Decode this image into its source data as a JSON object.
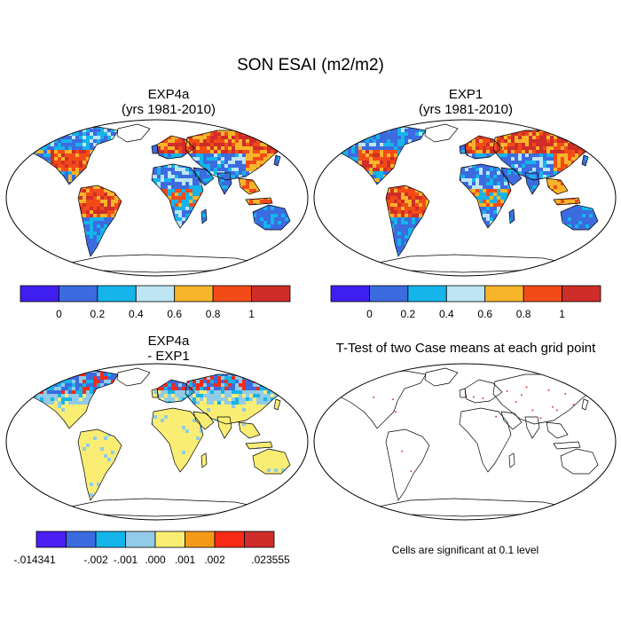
{
  "title": "SON ESAI (m2/m2)",
  "panels": [
    {
      "id": "exp4a",
      "title_line1": "EXP4a",
      "title_line2": "(yrs 1981-2010)"
    },
    {
      "id": "exp1",
      "title_line1": "EXP1",
      "title_line2": "(yrs 1981-2010)"
    },
    {
      "id": "diff",
      "title_line1": "EXP4a",
      "title_line2": " - EXP1"
    },
    {
      "id": "ttest",
      "title_line1": "T-Test of two Case means at each grid point",
      "title_line2": ""
    }
  ],
  "colorbar_abs": {
    "colors": [
      "#3f1ef0",
      "#3c6be0",
      "#15b4ea",
      "#bde5f3",
      "#f7b52a",
      "#f24b18",
      "#cf2d2a"
    ],
    "labels": [
      "0",
      "0.2",
      "0.4",
      "0.6",
      "0.8",
      "1"
    ]
  },
  "colorbar_diff": {
    "colors": [
      "#4b1ef5",
      "#3c6be0",
      "#15b4ea",
      "#92cbe8",
      "#faed74",
      "#f59918",
      "#f92a16",
      "#cf2d2a"
    ],
    "labels": [
      "-.014341",
      "-.002",
      "-.001",
      ".000",
      ".001",
      ".002",
      ".023555"
    ]
  },
  "significance_note": "Cells are significant at 0.1 level",
  "colors": {
    "land_low": "#3c6be0",
    "land_mid": "#15b4ea",
    "land_high": "#f24b18",
    "land_peak": "#cf2d2a",
    "land_warm": "#f7b52a",
    "diff_neutral": "#faed74",
    "diff_light": "#92cbe8",
    "significance": "#e0201a"
  }
}
